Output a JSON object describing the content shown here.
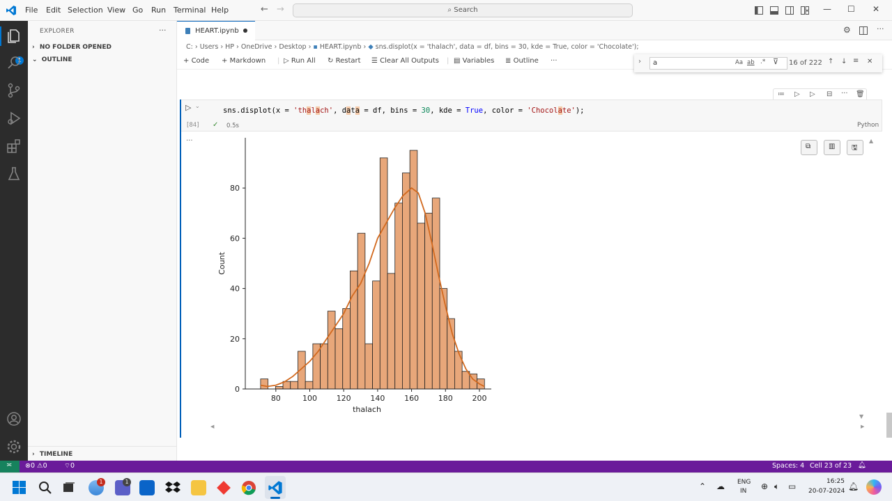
{
  "titlebar": {
    "menus": [
      "File",
      "Edit",
      "Selection",
      "View",
      "Go",
      "Run",
      "Terminal",
      "Help"
    ],
    "search_placeholder": "Search"
  },
  "activity_bar": {
    "icons": [
      "explorer-icon",
      "search-icon",
      "source-control-icon",
      "run-debug-icon",
      "extensions-icon",
      "testing-icon",
      "accounts-icon",
      "settings-gear-icon"
    ],
    "explorer_badge": "1"
  },
  "sidebar": {
    "header": "EXPLORER",
    "more": "···",
    "sections": [
      "NO FOLDER OPENED",
      "OUTLINE"
    ],
    "timeline": "TIMELINE"
  },
  "editor": {
    "tab_label": "HEART.ipynb",
    "breadcrumb": [
      "C:",
      "Users",
      "HP",
      "OneDrive",
      "Desktop",
      "HEART.ipynb",
      "sns.displot(x = 'thalach', data = df, bins = 30, kde = True, color = 'Chocolate');"
    ],
    "toolbar": {
      "code": "Code",
      "markdown": "Markdown",
      "run_all": "Run All",
      "restart": "Restart",
      "clear_outputs": "Clear All Outputs",
      "variables": "Variables",
      "outline": "Outline",
      "more": "···"
    },
    "find": {
      "value": "a",
      "match_case": "Aa",
      "whole_word": "ab",
      "regex": ".*",
      "count": "16 of 222"
    }
  },
  "cell": {
    "exec_count": "[84]",
    "duration": "0.5s",
    "language": "Python",
    "output_more": "···",
    "code_parts": {
      "p1": "sns.displot(x = ",
      "s1a": "'th",
      "s1b": "a",
      "s1c": "l",
      "s1d": "a",
      "s1e": "ch'",
      "p2": ", d",
      "p2b": "a",
      "p2c": "t",
      "p2d": "a",
      "p3": " = df, bins = ",
      "n1": "30",
      "p4": ", kde = ",
      "k1": "True",
      "p5": ", color = ",
      "s2a": "'Chocol",
      "s2b": "a",
      "s2c": "te'",
      "p6": ");"
    }
  },
  "chart_data": {
    "type": "bar",
    "xlabel": "thalach",
    "ylabel": "Count",
    "xlim": [
      62,
      207
    ],
    "ylim": [
      0,
      100
    ],
    "xticks": [
      80,
      100,
      120,
      140,
      160,
      180,
      200
    ],
    "yticks": [
      0,
      20,
      40,
      60,
      80
    ],
    "bar_color": "#e8a77a",
    "edge_color": "#222222",
    "kde_color": "#d2691e",
    "bins_left": [
      71,
      75.4,
      79.8,
      84.2,
      88.6,
      93.0,
      97.4,
      101.8,
      106.2,
      110.6,
      115.0,
      119.4,
      123.8,
      128.2,
      132.6,
      137.0,
      141.4,
      145.8,
      150.2,
      154.6,
      159.0,
      163.4,
      167.8,
      172.2,
      176.6,
      181.0,
      185.4,
      189.8,
      194.2,
      198.6
    ],
    "bin_width": 4.4,
    "values": [
      4,
      0,
      1,
      3,
      3,
      15,
      3,
      18,
      18,
      31,
      24,
      32,
      47,
      62,
      18,
      43,
      92,
      46,
      74,
      86,
      95,
      66,
      70,
      76,
      40,
      28,
      15,
      7,
      6,
      4
    ],
    "kde": [
      [
        71,
        1.5
      ],
      [
        75,
        1.0
      ],
      [
        80,
        1.5
      ],
      [
        85,
        2.8
      ],
      [
        90,
        5
      ],
      [
        95,
        8
      ],
      [
        100,
        11
      ],
      [
        105,
        15
      ],
      [
        110,
        20
      ],
      [
        115,
        25
      ],
      [
        120,
        30
      ],
      [
        125,
        37
      ],
      [
        130,
        42
      ],
      [
        135,
        50
      ],
      [
        140,
        60
      ],
      [
        145,
        66
      ],
      [
        150,
        72
      ],
      [
        155,
        77
      ],
      [
        160,
        80
      ],
      [
        164,
        78
      ],
      [
        168,
        70
      ],
      [
        172,
        58
      ],
      [
        176,
        45
      ],
      [
        180,
        33
      ],
      [
        184,
        22
      ],
      [
        188,
        14
      ],
      [
        192,
        8
      ],
      [
        196,
        4
      ],
      [
        200,
        2
      ],
      [
        203,
        1
      ]
    ]
  },
  "statusbar": {
    "errors": "0",
    "warnings": "0",
    "ports": "0",
    "spaces": "Spaces: 4",
    "cell": "Cell 23 of 23"
  },
  "taskbar": {
    "lang": "ENG",
    "region": "IN",
    "time": "16:25",
    "date": "20-07-2024",
    "badge1": "1",
    "badge2": "1"
  }
}
